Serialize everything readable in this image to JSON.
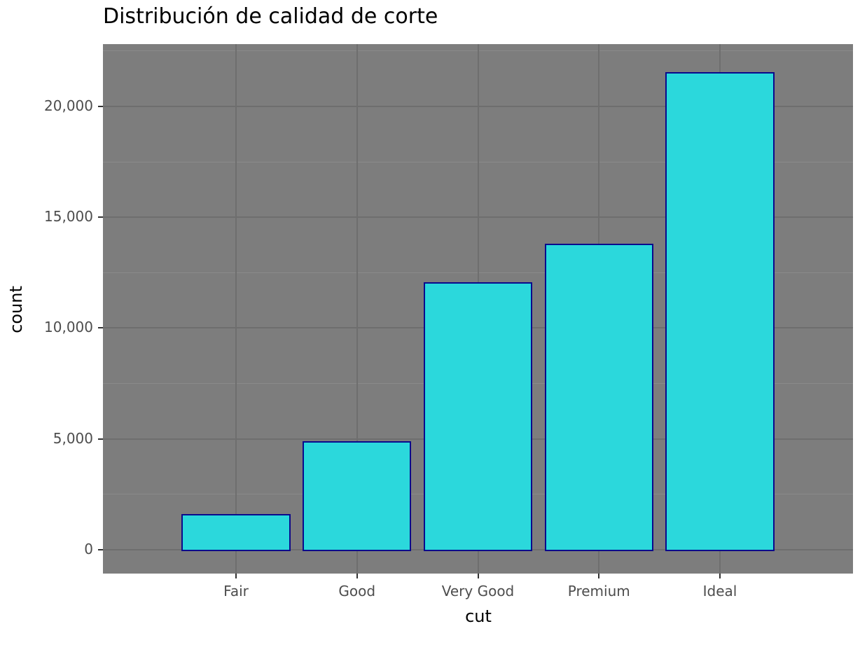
{
  "title": "Distribución de calidad de corte",
  "colors": {
    "figure_bg": "#ffffff",
    "panel_bg": "#7d7d7d",
    "grid_major": "#6e6e6e",
    "grid_minor": "#8a8a8a",
    "bar_fill": "#2bd8dc",
    "bar_stroke": "#0a0a8b",
    "tick_label": "#4d4d4d",
    "tick_mark": "#333333",
    "axis_title": "#000000",
    "title_color": "#000000"
  },
  "chart_data": {
    "type": "bar",
    "title": "Distribución de calidad de corte",
    "xlabel": "cut",
    "ylabel": "count",
    "categories": [
      "Fair",
      "Good",
      "Very Good",
      "Premium",
      "Ideal"
    ],
    "values": [
      1610,
      4906,
      12082,
      13791,
      21551
    ],
    "ylim": [
      -1078,
      22810
    ],
    "yticks": [
      0,
      5000,
      10000,
      15000,
      20000
    ],
    "ytick_labels": [
      "0",
      "5,000",
      "10,000",
      "15,000",
      "20,000"
    ],
    "yticks_minor": [
      2500,
      7500,
      12500,
      17500,
      22500
    ],
    "bar_width_fraction": 0.9,
    "x_expansion": 0.6,
    "grid": "major-and-minor-horizontal, major-vertical-at-categories",
    "legend_position": "none",
    "panel_theme": "gray50 background with darker major and lighter minor gridlines"
  }
}
